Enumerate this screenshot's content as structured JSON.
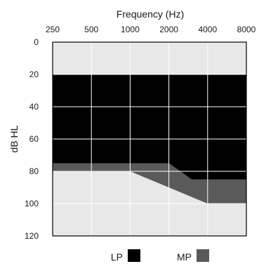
{
  "chart_data": {
    "type": "area",
    "title": "",
    "xlabel": "Frequency (Hz)",
    "ylabel": "dB HL",
    "x_categories": [
      "250",
      "500",
      "1000",
      "2000",
      "4000",
      "8000"
    ],
    "x_axis_position": "top",
    "ylim": [
      0,
      120
    ],
    "y_ticks": [
      "0",
      "20",
      "40",
      "60",
      "80",
      "100",
      "120"
    ],
    "y_inverted": true,
    "grid": true,
    "legend_position": "bottom",
    "background_color": "#e8e8e8",
    "grid_color": "#ffffff",
    "series": [
      {
        "name": "LP",
        "color": "#000000",
        "upper_db": [
          20,
          20,
          20,
          20,
          20,
          20
        ],
        "lower_db": [
          75,
          75,
          75,
          75,
          85,
          85
        ],
        "vertices": [
          [
            250,
            20
          ],
          [
            8000,
            20
          ],
          [
            8000,
            85
          ],
          [
            3000,
            85
          ],
          [
            2000,
            75
          ],
          [
            250,
            75
          ]
        ]
      },
      {
        "name": "MP",
        "color": "#5a5a5a",
        "upper_db": [
          75,
          75,
          75,
          75,
          85,
          85
        ],
        "lower_db": [
          80,
          80,
          80,
          90,
          100,
          100
        ],
        "vertices": [
          [
            250,
            75
          ],
          [
            2000,
            75
          ],
          [
            3000,
            85
          ],
          [
            8000,
            85
          ],
          [
            8000,
            100
          ],
          [
            4000,
            100
          ],
          [
            1000,
            80
          ],
          [
            250,
            80
          ]
        ]
      }
    ]
  }
}
